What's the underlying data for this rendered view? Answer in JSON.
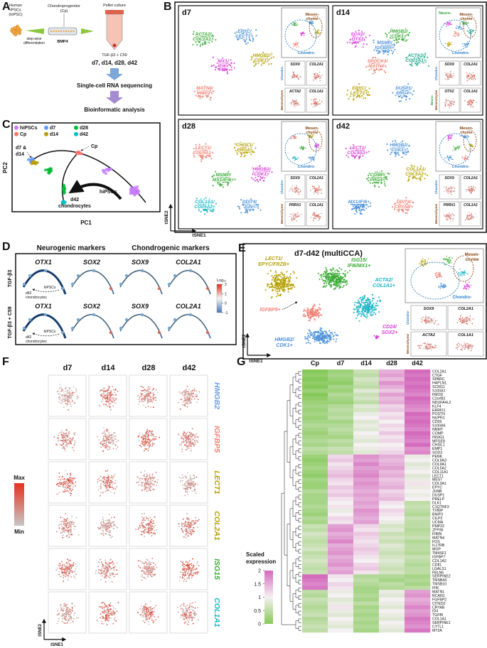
{
  "A": {
    "letter": "A",
    "hipsc": [
      "Human",
      "iPSCs",
      "(hiPSC)"
    ],
    "stepwise": [
      "step-wise",
      "differentiation"
    ],
    "cp": [
      "Chondroprogenitor",
      "(Cp)"
    ],
    "bmp4": "BMP4",
    "pellet": "Pellet culture",
    "tgf": "TGF-β3 + C59",
    "days": "d7, d14, d28, d42",
    "scrna": "Single-cell RNA sequencing",
    "bioinf": "Bioinformatic analysis"
  },
  "B": {
    "letter": "B",
    "axis_x": "tSNE1",
    "axis_y": "tSNE2",
    "panels": [
      {
        "title": "d7",
        "clusters": [
          {
            "lines": [
              "ACTA2/",
              "COL1A1+"
            ],
            "color": "#3aaa35"
          },
          {
            "lines": [
              "EPYC/",
              "LECT1+"
            ],
            "color": "#4a90d9"
          },
          {
            "lines": [
              "HMGB2/",
              "CDK1+"
            ],
            "color": "#b5a000"
          },
          {
            "lines": [
              "MX1/",
              "IFI6+"
            ],
            "color": "#d63fd6"
          },
          {
            "lines": [
              "MATN4/",
              "MMP2+"
            ],
            "color": "#f07f72"
          }
        ],
        "outline": [
          {
            "lines": [
              "Mesen-",
              "chyme"
            ],
            "color": "#8b4513"
          },
          {
            "lines": [
              "Chondro-"
            ],
            "color": "#2f80c8"
          }
        ],
        "insets": [
          "SOX9",
          "COL2A1",
          "ACTA2",
          "COL1A1"
        ],
        "side": [
          {
            "text": "Chondro-",
            "color": "#2f80c8"
          },
          {
            "text": "Mesenchyme",
            "color": "#8b4513"
          }
        ]
      },
      {
        "title": "d14",
        "clusters": [
          {
            "lines": [
              "SOX2/",
              "OTX2"
            ],
            "color": "#d63fd6"
          },
          {
            "lines": [
              "HMGB2/",
              "CDK1+"
            ],
            "color": "#3aaa35"
          },
          {
            "lines": [
              "ACTA2/",
              "COL1A1+"
            ],
            "color": "#17a589"
          },
          {
            "lines": [
              "SPOCK3/",
              "MATN4+"
            ],
            "color": "#f07f72"
          },
          {
            "lines": [
              "EPYC/",
              "LECT1+"
            ],
            "color": "#b5a000"
          },
          {
            "lines": [
              "DUSP1/",
              "PRG4+"
            ],
            "color": "#4a90d9"
          },
          {
            "lines": [
              "MSMP/",
              "IGFBP5+"
            ],
            "color": "#4a90d9"
          }
        ],
        "outline": [
          {
            "lines": [
              "Mesen-",
              "chyme"
            ],
            "color": "#8b4513"
          },
          {
            "lines": [
              "Chondro-"
            ],
            "color": "#2f80c8"
          },
          {
            "lines": [
              "Neuro-"
            ],
            "color": "#2e9e3e"
          }
        ],
        "insets": [
          "SOX9",
          "COL2A1",
          "OTX2",
          "COL1A1"
        ],
        "side": [
          {
            "text": "Chondro-",
            "color": "#2f80c8"
          },
          {
            "text": "Neuro-",
            "color": "#2e9e3e"
          },
          {
            "text": "Mesenchyme",
            "color": "#8b4513"
          }
        ]
      },
      {
        "title": "d28",
        "clusters": [
          {
            "lines": [
              "LECT1/",
              "COL9A1+"
            ],
            "color": "#f07f72"
          },
          {
            "lines": [
              "CHI3L1/",
              "PRG4+"
            ],
            "color": "#b5a000"
          },
          {
            "lines": [
              "HMGB2/",
              "CDK1+"
            ],
            "color": "#d63fd6"
          },
          {
            "lines": [
              "MSMP/",
              "MX1/IFI6+"
            ],
            "color": "#3aaa35"
          },
          {
            "lines": [
              "COL1A1/",
              "COL5A2+"
            ],
            "color": "#17b5c4"
          },
          {
            "lines": [
              "DDIT4/",
              "JUN+"
            ],
            "color": "#4a90d9"
          }
        ],
        "outline": [
          {
            "lines": [
              "Mesen-",
              "chyme"
            ],
            "color": "#8b4513"
          },
          {
            "lines": [
              "Chondro-"
            ],
            "color": "#2f80c8"
          }
        ],
        "insets": [
          "SOX9",
          "COL2A1",
          "PRRX1",
          "COL1A1"
        ],
        "side": [
          {
            "text": "Chondro-",
            "color": "#2f80c8"
          },
          {
            "text": "Mesenchyme",
            "color": "#8b4513"
          }
        ]
      },
      {
        "title": "d42",
        "clusters": [
          {
            "lines": [
              "LECT1/",
              "COL9A1+"
            ],
            "color": "#d63fd6"
          },
          {
            "lines": [
              "HMGB2/",
              "CDK1+"
            ],
            "color": "#4a90d9"
          },
          {
            "lines": [
              "COL1A1/",
              "COL5A2+"
            ],
            "color": "#b5a000"
          },
          {
            "lines": [
              "COMP/",
              "PRG4+"
            ],
            "color": "#3aaa35"
          },
          {
            "lines": [
              "MX1/IFI6+"
            ],
            "color": "#4a90d9"
          },
          {
            "lines": [
              "DDIT4/",
              "CRYAB+"
            ],
            "color": "#f07f72"
          }
        ],
        "outline": [
          {
            "lines": [
              "Mesen-",
              "chyme"
            ],
            "color": "#8b4513"
          },
          {
            "lines": [
              "Chondro-"
            ],
            "color": "#2f80c8"
          }
        ],
        "insets": [
          "SOX9",
          "COL2A1",
          "PRRX1",
          "COL1A1"
        ],
        "side": [
          {
            "text": "Chondro-",
            "color": "#2f80c8"
          },
          {
            "text": "Mesenchyme",
            "color": "#8b4513"
          }
        ]
      }
    ]
  },
  "C": {
    "letter": "C",
    "legend": [
      {
        "name": "hiPSCs",
        "color": "#c77cff"
      },
      {
        "name": "Cp",
        "color": "#f8766d"
      },
      {
        "name": "d7",
        "color": "#619cff"
      },
      {
        "name": "d14",
        "color": "#b79f00"
      },
      {
        "name": "d28",
        "color": "#00ba38"
      },
      {
        "name": "d42",
        "color": "#00bfc4"
      }
    ],
    "annotations": [
      "d7 &",
      "d14",
      "Cp",
      "hiPSCs",
      "d42",
      "chondrocytes"
    ],
    "xlabel": "PC1",
    "ylabel": "PC2"
  },
  "D": {
    "letter": "D",
    "neuro": "Neurogenic markers",
    "chondro": "Chondrogenic markers",
    "rows": [
      "TGF-β3",
      "TGF-β3 + C59"
    ],
    "genes": [
      "OTX1",
      "SOX2",
      "SOX9",
      "COL2A1"
    ],
    "annot": [
      "hiPSCs",
      "d42",
      "chondrocytes"
    ],
    "legend_title": "Log₁₀",
    "legend_ticks": [
      2,
      1,
      0,
      -1
    ]
  },
  "E": {
    "letter": "E",
    "title": "d7-d42 (multiCCA)",
    "clusters": [
      {
        "lines": [
          "LECT1/",
          "EPYC/FRZB+"
        ],
        "color": "#b5a000"
      },
      {
        "lines": [
          "ISG15/",
          "IFI6/MX1+"
        ],
        "color": "#3aaa35"
      },
      {
        "lines": [
          "ACTA2/",
          "COL1A1+"
        ],
        "color": "#17b5c4"
      },
      {
        "lines": [
          "IGFBP5+"
        ],
        "color": "#f07f72"
      },
      {
        "lines": [
          "HMGB2/",
          "CDK1+"
        ],
        "color": "#4a90d9"
      },
      {
        "lines": [
          "CD24/",
          "SOX2+"
        ],
        "color": "#d63fd6"
      }
    ],
    "outline": [
      {
        "lines": [
          "Mesen-",
          "chyme"
        ],
        "color": "#8b4513"
      },
      {
        "lines": [
          "Chondro-"
        ],
        "color": "#2f80c8"
      }
    ],
    "insets": [
      "SOX9",
      "COL2A1",
      "ACTA2",
      "COL1A1"
    ],
    "side": [
      {
        "text": "Chondro-",
        "color": "#2f80c8"
      },
      {
        "text": "Mesenchyme",
        "color": "#8b4513"
      }
    ],
    "axis_x": "tSNE1",
    "axis_y": "tSNE2"
  },
  "F": {
    "letter": "F",
    "columns": [
      "d7",
      "d14",
      "d28",
      "d42"
    ],
    "genes": [
      {
        "name": "HMGB2",
        "color": "#6a9be6"
      },
      {
        "name": "IGFBP5",
        "color": "#f07f72"
      },
      {
        "name": "LECT1",
        "color": "#b5a000"
      },
      {
        "name": "COL2A1",
        "color": "#b5a000"
      },
      {
        "name": "ISG15",
        "color": "#3aaa35"
      },
      {
        "name": "COL1A1",
        "color": "#17b5c4"
      }
    ],
    "max": "Max",
    "min": "Min",
    "axis_x": "tSNE1",
    "axis_y": "tSNE2"
  },
  "G": {
    "letter": "G",
    "columns": [
      "Cp",
      "d7",
      "d14",
      "d28",
      "d42"
    ],
    "genes": [
      "COL2A1",
      "CTGF",
      "SPARC",
      "HAPLN1",
      "SCRG1",
      "S100A1",
      "FMOD",
      "C2orf82",
      "NDUFA4L2",
      "KLF4",
      "ERRFI1",
      "POSTN",
      "NUPR1",
      "CD59",
      "S100A6",
      "NNMT",
      "COMP",
      "INSIG1",
      "MFGE8",
      "CHI3L1",
      "EMP1",
      "SOD3",
      "PENK",
      "COL9A3",
      "COL9A1",
      "COL5A2",
      "COL11A1",
      "LECT1",
      "MEST",
      "COL3A1",
      "EPYC",
      "JUNB",
      "DUSP1",
      "PRELP",
      "DLK1",
      "C1QTNF3",
      "TXNIP",
      "BNIP3",
      "CILP2",
      "UCMA",
      "PMP22",
      "ZFP36",
      "FIBIN",
      "MATN4",
      "FOS",
      "IL17RB",
      "MGP",
      "TM4SF1",
      "IGFBP7",
      "COL1A2",
      "CD81",
      "LGALS1",
      "FBLN5",
      "SERPINE2",
      "TMSB4X",
      "TMSB10",
      "IFI6",
      "MATN1",
      "RCAN1",
      "FGFBP2",
      "CITED2",
      "CRYAB",
      "ID4",
      "TGFBI",
      "COL1A1",
      "SERPINE1",
      "CYTL1",
      "MT2A"
    ],
    "values": [
      [
        0,
        0.2,
        0.6,
        1.5,
        2
      ],
      [
        0.1,
        0.3,
        0.5,
        1.6,
        1.9
      ],
      [
        0,
        0.2,
        0.7,
        1.4,
        2
      ],
      [
        0.1,
        0.1,
        0.6,
        1.7,
        1.9
      ],
      [
        0,
        0.3,
        0.5,
        1.5,
        2
      ],
      [
        0.2,
        0.2,
        0.8,
        1.3,
        1.9
      ],
      [
        0,
        0.4,
        0.6,
        1.6,
        1.8
      ],
      [
        0.1,
        0.3,
        0.7,
        1.4,
        2
      ],
      [
        0.2,
        0.2,
        0.5,
        1.5,
        1.9
      ],
      [
        0.3,
        0.4,
        0.8,
        1.2,
        1.8
      ],
      [
        0.2,
        0.5,
        0.7,
        1.3,
        1.7
      ],
      [
        0.3,
        0.4,
        0.9,
        1.1,
        2
      ],
      [
        0.2,
        0.5,
        1,
        1.2,
        1.9
      ],
      [
        0.3,
        0.3,
        0.8,
        1,
        2
      ],
      [
        0.4,
        0.4,
        0.9,
        1.2,
        1.9
      ],
      [
        0.3,
        0.5,
        0.8,
        1.1,
        1.8
      ],
      [
        0.2,
        0.4,
        1,
        1.3,
        2
      ],
      [
        0.3,
        0.3,
        0.9,
        1.1,
        1.9
      ],
      [
        0.4,
        0.5,
        0.8,
        1.2,
        1.8
      ],
      [
        0.3,
        0.4,
        1,
        1,
        2
      ],
      [
        0.5,
        0.6,
        0.9,
        1.1,
        1.7
      ],
      [
        0.4,
        0.5,
        0.8,
        1.2,
        1.8
      ],
      [
        0.2,
        1.2,
        1.7,
        1.5,
        0.9
      ],
      [
        0.1,
        1.3,
        1.6,
        1.4,
        1
      ],
      [
        0.2,
        1.1,
        1.8,
        1.5,
        0.8
      ],
      [
        0.3,
        1.2,
        1.6,
        1.6,
        0.9
      ],
      [
        0.2,
        1.3,
        1.7,
        1.4,
        1
      ],
      [
        0.1,
        1.4,
        1.8,
        1.5,
        0.8
      ],
      [
        0.3,
        1.2,
        1.6,
        1.3,
        0.9
      ],
      [
        0.2,
        1.1,
        1.7,
        1.4,
        1.1
      ],
      [
        0.2,
        1.3,
        1.6,
        1.5,
        0.9
      ],
      [
        0.4,
        1.2,
        1.5,
        1.2,
        1
      ],
      [
        0.3,
        1.3,
        1.6,
        1.3,
        0.9
      ],
      [
        0.3,
        1.1,
        1.5,
        1.4,
        1
      ],
      [
        0.3,
        1,
        1.6,
        1.1,
        0.5
      ],
      [
        0.4,
        1.1,
        1.5,
        1,
        0.6
      ],
      [
        0.3,
        0.9,
        1.7,
        1.2,
        0.5
      ],
      [
        0.2,
        1,
        1.6,
        1.1,
        0.4
      ],
      [
        0.4,
        1.2,
        1.5,
        1,
        0.6
      ],
      [
        0.3,
        1.1,
        1.6,
        0.9,
        0.5
      ],
      [
        0.6,
        1.6,
        1.2,
        0.7,
        0.5
      ],
      [
        0.5,
        1.7,
        1.1,
        0.8,
        0.4
      ],
      [
        0.7,
        1.5,
        1.3,
        0.6,
        0.5
      ],
      [
        0.6,
        1.6,
        1.2,
        0.7,
        0.6
      ],
      [
        0.5,
        1.8,
        1.1,
        0.6,
        0.4
      ],
      [
        0.6,
        1.5,
        1.2,
        0.8,
        0.5
      ],
      [
        0.7,
        1.6,
        1.3,
        0.7,
        0.5
      ],
      [
        0.5,
        1.7,
        1.2,
        0.6,
        0.4
      ],
      [
        0.6,
        1.5,
        1.1,
        0.7,
        0.6
      ],
      [
        0.7,
        1.6,
        1,
        0.8,
        0.5
      ],
      [
        0.6,
        1.7,
        1.2,
        0.7,
        0.4
      ],
      [
        0.5,
        1.5,
        1.3,
        0.6,
        0.5
      ],
      [
        0.6,
        1.6,
        1.1,
        0.7,
        0.5
      ],
      [
        2,
        1.1,
        0.4,
        0.4,
        0.3
      ],
      [
        1.9,
        1,
        0.5,
        0.3,
        0.4
      ],
      [
        1.8,
        1.2,
        0.4,
        0.5,
        0.3
      ],
      [
        1.9,
        1.1,
        0.3,
        0.4,
        0.5
      ],
      [
        0.5,
        0.9,
        0.3,
        0.9,
        1.6
      ],
      [
        0.4,
        1,
        0.4,
        0.8,
        1.7
      ],
      [
        0.6,
        0.8,
        0.3,
        1,
        1.5
      ],
      [
        0.5,
        0.9,
        0.5,
        0.9,
        1.6
      ],
      [
        0.4,
        1.1,
        0.3,
        0.8,
        1.8
      ],
      [
        0.5,
        0.9,
        0.4,
        1,
        1.6
      ],
      [
        0.6,
        0.8,
        0.3,
        0.9,
        1.7
      ],
      [
        0.4,
        1,
        0.4,
        0.8,
        1.9
      ],
      [
        0.5,
        0.9,
        0.3,
        1,
        1.8
      ],
      [
        0.6,
        0.8,
        0.4,
        0.9,
        1.7
      ],
      [
        0.5,
        1,
        0.3,
        0.8,
        1.9
      ]
    ],
    "clim": [
      0,
      2
    ],
    "colors": [
      "#86c95a",
      "#f5f0f2",
      "#d46bbd"
    ],
    "legend_title": [
      "Scaled",
      "expression"
    ],
    "legend_ticks": [
      2,
      1.5,
      1,
      0.5,
      0
    ]
  }
}
